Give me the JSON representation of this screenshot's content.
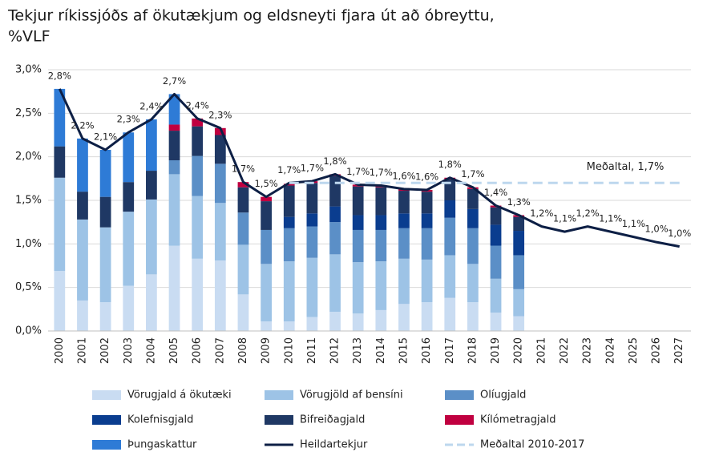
{
  "chart_data": {
    "type": "bar",
    "title": [
      "Tekjur ríkissjóðs af ökutækjum og eldsneyti fjara út að óbreyttu,",
      "%VLF"
    ],
    "categories": [
      "2000",
      "2001",
      "2002",
      "2003",
      "2004",
      "2005",
      "2006",
      "2007",
      "2008",
      "2009",
      "2010",
      "2011",
      "2012",
      "2013",
      "2014",
      "2015",
      "2016",
      "2017",
      "2018",
      "2019",
      "2020",
      "2021",
      "2022",
      "2023",
      "2024",
      "2025",
      "2026",
      "2027"
    ],
    "stacked": true,
    "series": [
      {
        "name": "Vörugjald á ökutæki",
        "color": "#c9dcf2",
        "values": [
          0.69,
          0.35,
          0.33,
          0.52,
          0.65,
          0.98,
          0.83,
          0.81,
          0.42,
          0.11,
          0.11,
          0.16,
          0.22,
          0.2,
          0.24,
          0.31,
          0.33,
          0.38,
          0.33,
          0.21,
          0.17,
          null,
          null,
          null,
          null,
          null,
          null,
          null
        ]
      },
      {
        "name": "Vörugjöld af bensíni",
        "color": "#9dc3e6",
        "values": [
          1.07,
          0.93,
          0.86,
          0.85,
          0.86,
          0.82,
          0.72,
          0.66,
          0.57,
          0.66,
          0.69,
          0.68,
          0.66,
          0.59,
          0.56,
          0.52,
          0.49,
          0.49,
          0.44,
          0.39,
          0.31,
          null,
          null,
          null,
          null,
          null,
          null,
          null
        ]
      },
      {
        "name": "Olíugjald",
        "color": "#5b8fc7",
        "values": [
          0,
          0,
          0,
          0,
          0,
          0.16,
          0.46,
          0.45,
          0.37,
          0.39,
          0.38,
          0.36,
          0.37,
          0.37,
          0.36,
          0.35,
          0.36,
          0.43,
          0.41,
          0.38,
          0.39,
          null,
          null,
          null,
          null,
          null,
          null,
          null
        ]
      },
      {
        "name": "Kolefnisgjald",
        "color": "#0a3d8f",
        "values": [
          0,
          0,
          0,
          0,
          0,
          0,
          0,
          0,
          0,
          0,
          0.13,
          0.15,
          0.18,
          0.17,
          0.17,
          0.17,
          0.17,
          0.2,
          0.22,
          0.24,
          0.28,
          null,
          null,
          null,
          null,
          null,
          null,
          null
        ]
      },
      {
        "name": "Bifreiðagjald",
        "color": "#1f3864",
        "values": [
          0.36,
          0.32,
          0.35,
          0.34,
          0.33,
          0.34,
          0.34,
          0.33,
          0.29,
          0.33,
          0.36,
          0.35,
          0.35,
          0.33,
          0.32,
          0.26,
          0.25,
          0.24,
          0.23,
          0.2,
          0.16,
          null,
          null,
          null,
          null,
          null,
          null,
          null
        ]
      },
      {
        "name": "Kílómetragjald",
        "color": "#c00040",
        "values": [
          0,
          0,
          0,
          0,
          0,
          0.07,
          0.09,
          0.08,
          0.06,
          0.05,
          0.02,
          0.02,
          0.02,
          0.02,
          0.02,
          0.02,
          0.02,
          0.02,
          0.02,
          0.02,
          0.02,
          null,
          null,
          null,
          null,
          null,
          null,
          null
        ]
      },
      {
        "name": "Þungaskattur",
        "color": "#2e7bd6",
        "values": [
          0.66,
          0.61,
          0.54,
          0.57,
          0.59,
          0.35,
          0,
          0,
          0,
          0,
          0,
          0,
          0,
          0,
          0,
          0,
          0,
          0,
          0,
          0,
          0,
          null,
          null,
          null,
          null,
          null,
          null,
          null
        ]
      }
    ],
    "lines": [
      {
        "name": "Heildartekjur",
        "color": "#0d1f45",
        "values": [
          2.78,
          2.21,
          2.08,
          2.28,
          2.43,
          2.72,
          2.44,
          2.33,
          1.71,
          1.54,
          1.7,
          1.72,
          1.8,
          1.68,
          1.67,
          1.63,
          1.62,
          1.76,
          1.65,
          1.44,
          1.33,
          1.2,
          1.14,
          1.2,
          1.14,
          1.08,
          1.02,
          0.97
        ],
        "value_labels": [
          "2,8%",
          "2,2%",
          "2,1%",
          "2,3%",
          "2,4%",
          "2,7%",
          "2,4%",
          "2,3%",
          "1,7%",
          "1,5%",
          "1,7%",
          "1,7%",
          "1,8%",
          "1,7%",
          "1,7%",
          "1,6%",
          "1,6%",
          "1,8%",
          "1,7%",
          "1,4%",
          "1,3%",
          "1,2%",
          "1,1%",
          "1,2%",
          "1,1%",
          "1,1%",
          "1,0%",
          "1,0%"
        ]
      },
      {
        "name": "Meðaltal 2010-2017",
        "color": "#bdd7ee",
        "dashed": true,
        "values": [
          null,
          null,
          null,
          null,
          null,
          null,
          null,
          null,
          null,
          null,
          1.7,
          1.7,
          1.7,
          1.7,
          1.7,
          1.7,
          1.7,
          1.7,
          1.7,
          1.7,
          1.7,
          1.7,
          1.7,
          1.7,
          1.7,
          1.7,
          1.7,
          1.7
        ]
      }
    ],
    "annotation": "Meðaltal, 1,7%",
    "ylim": [
      0,
      3
    ],
    "yticks": [
      {
        "value": 0,
        "label": "0,0%"
      },
      {
        "value": 0.5,
        "label": "0,5%"
      },
      {
        "value": 1,
        "label": "1,0%"
      },
      {
        "value": 1.5,
        "label": "1,5%"
      },
      {
        "value": 2,
        "label": "2,0%"
      },
      {
        "value": 2.5,
        "label": "2,5%"
      },
      {
        "value": 3,
        "label": "3,0%"
      }
    ],
    "grid": true
  }
}
